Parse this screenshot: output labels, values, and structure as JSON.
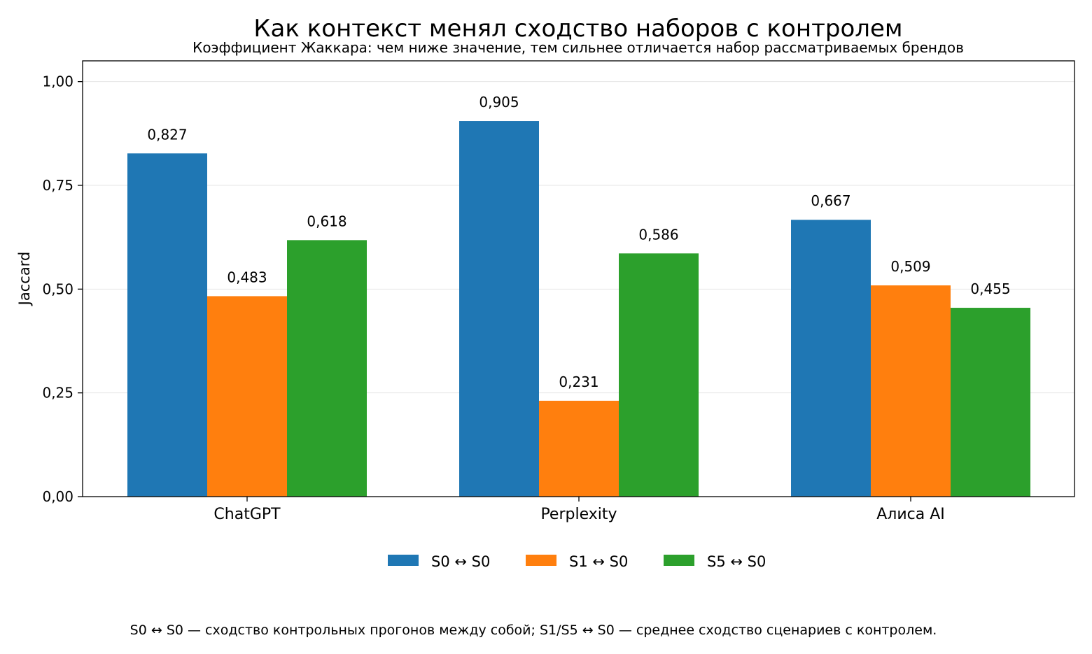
{
  "chart_data": {
    "type": "bar",
    "title": "Как контекст менял сходство наборов с контролем",
    "subtitle": "Коэффициент Жаккара: чем ниже значение, тем сильнее отличается набор рассматриваемых брендов",
    "xlabel": "",
    "ylabel": "Jaccard",
    "ylim": [
      0,
      1.05
    ],
    "yticks": [
      0,
      0.25,
      0.5,
      0.75,
      1.0
    ],
    "ytick_labels": [
      "0,00",
      "0,25",
      "0,50",
      "0,75",
      "1,00"
    ],
    "grid": "horizontal",
    "legend_position": "bottom-center",
    "categories": [
      "ChatGPT",
      "Perplexity",
      "Алиса AI"
    ],
    "series": [
      {
        "name": "S0 ↔ S0",
        "color": "#1f77b4",
        "values": [
          0.827,
          0.905,
          0.667
        ],
        "labels": [
          "0,827",
          "0,905",
          "0,667"
        ]
      },
      {
        "name": "S1 ↔ S0",
        "color": "#ff7f0e",
        "values": [
          0.483,
          0.231,
          0.509
        ],
        "labels": [
          "0,483",
          "0,231",
          "0,509"
        ]
      },
      {
        "name": "S5 ↔ S0",
        "color": "#2ca02c",
        "values": [
          0.618,
          0.586,
          0.455
        ],
        "labels": [
          "0,618",
          "0,586",
          "0,455"
        ]
      }
    ]
  },
  "footnote": "S0 ↔ S0 — сходство контрольных прогонов между собой; S1/S5 ↔ S0 — среднее сходство сценариев с контролем."
}
